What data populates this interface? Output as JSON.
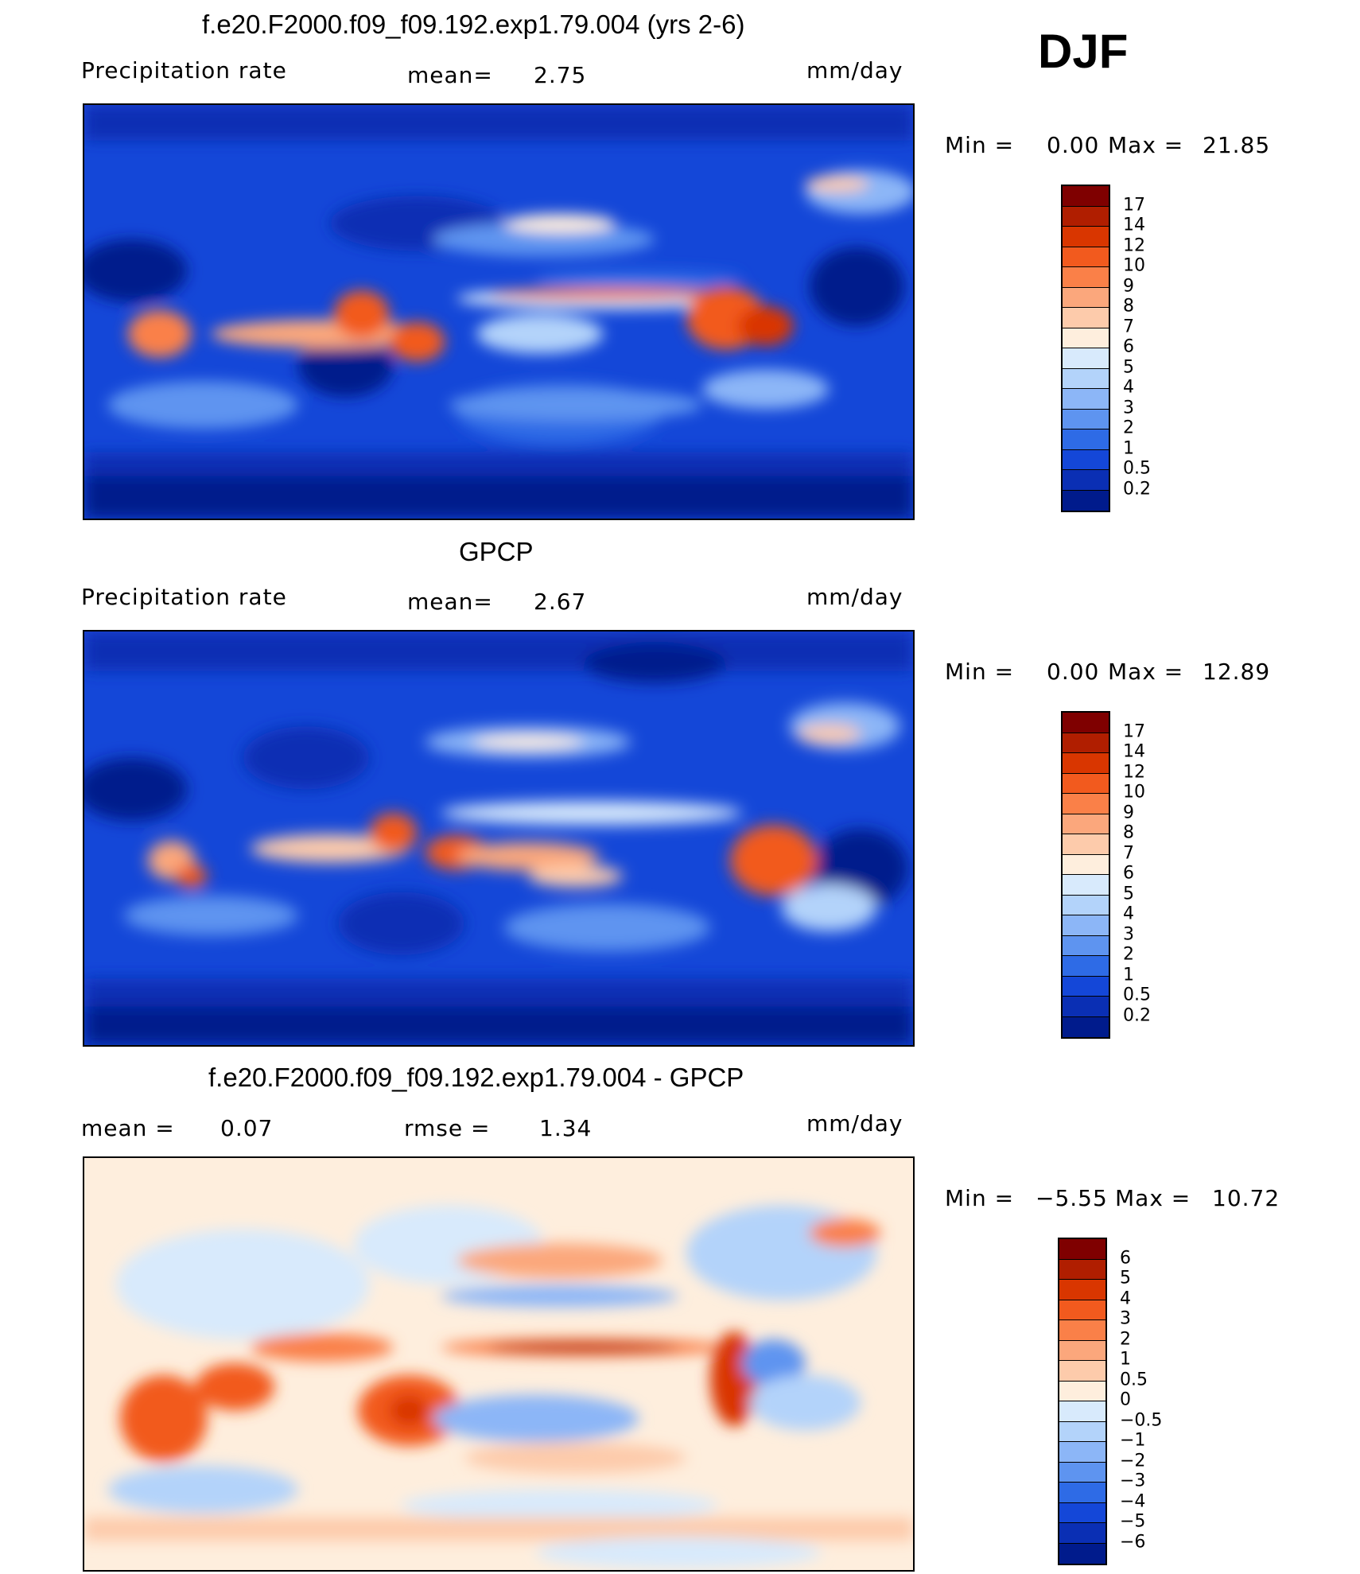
{
  "season": "DJF",
  "panels": [
    {
      "title": "f.e20.F2000.f09_f09.192.exp1.79.004 (yrs 2-6)",
      "left_label": "Precipitation  rate",
      "mid_label": "mean=",
      "mid_value": "2.75",
      "units": "mm/day",
      "range_text": {
        "min_label": "Min  =",
        "min_value": "0.00",
        "max_label": "Max  =",
        "max_value": "21.85"
      },
      "colorbar": {
        "labels": [
          "17",
          "14",
          "12",
          "10",
          "9",
          "8",
          "7",
          "6",
          "5",
          "4",
          "3",
          "2",
          "1",
          "0.5",
          "0.2"
        ],
        "colors": [
          "#7f0000",
          "#b01e00",
          "#d93600",
          "#f25a1e",
          "#fa8048",
          "#fba77c",
          "#fdcbab",
          "#feeedd",
          "#d8eafc",
          "#b3d3fa",
          "#8cb6f7",
          "#5e94f0",
          "#2e6be6",
          "#1447d8",
          "#0a2fb4",
          "#001b8c"
        ]
      }
    },
    {
      "title": "GPCP",
      "left_label": "Precipitation  rate",
      "mid_label": "mean=",
      "mid_value": "2.67",
      "units": "mm/day",
      "range_text": {
        "min_label": "Min  =",
        "min_value": "0.00",
        "max_label": "Max  =",
        "max_value": "12.89"
      },
      "colorbar": {
        "labels": [
          "17",
          "14",
          "12",
          "10",
          "9",
          "8",
          "7",
          "6",
          "5",
          "4",
          "3",
          "2",
          "1",
          "0.5",
          "0.2"
        ],
        "colors": [
          "#7f0000",
          "#b01e00",
          "#d93600",
          "#f25a1e",
          "#fa8048",
          "#fba77c",
          "#fdcbab",
          "#feeedd",
          "#d8eafc",
          "#b3d3fa",
          "#8cb6f7",
          "#5e94f0",
          "#2e6be6",
          "#1447d8",
          "#0a2fb4",
          "#001b8c"
        ]
      }
    },
    {
      "title": "f.e20.F2000.f09_f09.192.exp1.79.004 - GPCP",
      "left_label": "mean  =",
      "left_value": "0.07",
      "mid_label": "rmse  =",
      "mid_value": "1.34",
      "units": "mm/day",
      "range_text": {
        "min_label": "Min  =",
        "min_value": "−5.55",
        "max_label": "Max  =",
        "max_value": "10.72"
      },
      "colorbar": {
        "labels": [
          "6",
          "5",
          "4",
          "3",
          "2",
          "1",
          "0.5",
          "0",
          "−0.5",
          "−1",
          "−2",
          "−3",
          "−4",
          "−5",
          "−6"
        ],
        "colors": [
          "#7f0000",
          "#b01e00",
          "#d93600",
          "#f25a1e",
          "#fa8048",
          "#fba77c",
          "#fdcbab",
          "#feeedd",
          "#d8eafc",
          "#b3d3fa",
          "#8cb6f7",
          "#5e94f0",
          "#2e6be6",
          "#1447d8",
          "#0a2fb4",
          "#001b8c"
        ]
      }
    }
  ]
}
